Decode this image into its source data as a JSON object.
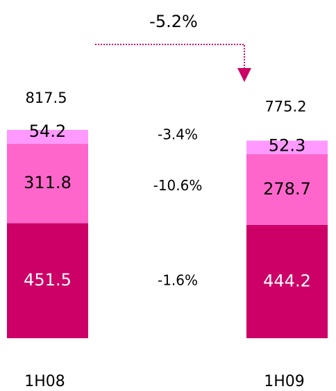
{
  "chart_data": {
    "type": "stacked-bar",
    "categories": [
      "1H08",
      "1H09"
    ],
    "series": [
      {
        "color": "#cc0066",
        "values": [
          451.5,
          444.2
        ],
        "change": "-1.6%"
      },
      {
        "color": "#ff66cc",
        "values": [
          311.8,
          278.7
        ],
        "change": "-10.6%"
      },
      {
        "color": "#ff99ff",
        "values": [
          54.2,
          52.3
        ],
        "change": "-3.4%"
      }
    ],
    "totals": [
      817.5,
      775.2
    ],
    "total_change": "-5.2%",
    "arrow_color": "#cc0066"
  }
}
